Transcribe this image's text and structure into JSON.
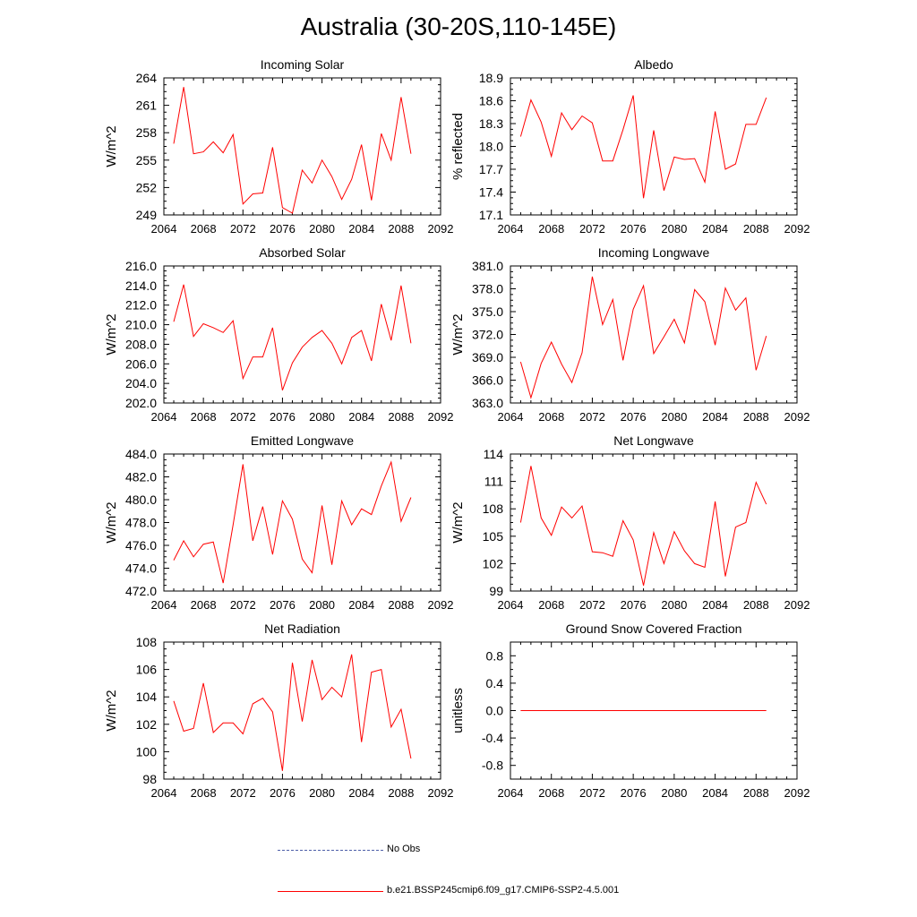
{
  "title": "Australia (30-20S,110-145E)",
  "colors": {
    "model_line": "#ff0000",
    "obs_line": "#4d5fa8",
    "axis": "#000000"
  },
  "legend": [
    {
      "label": "No Obs",
      "style": "dashed",
      "color": "#4d5fa8"
    },
    {
      "label": "b.e21.BSSP245cmip6.f09_g17.CMIP6-SSP2-4.5.001",
      "style": "solid",
      "color": "#ff0000"
    }
  ],
  "chart_data": [
    {
      "type": "line",
      "title": "Incoming Solar",
      "xlabel": "",
      "ylabel": "W/m^2",
      "xlim": [
        2064,
        2092
      ],
      "ylim": [
        249,
        264
      ],
      "xticks": [
        2064,
        2068,
        2072,
        2076,
        2080,
        2084,
        2088,
        2092
      ],
      "yticks": [
        249,
        252,
        255,
        258,
        261,
        264
      ],
      "ytick_labels": [
        "249",
        "252",
        "255",
        "258",
        "261",
        "264"
      ],
      "x": [
        2065,
        2066,
        2067,
        2068,
        2069,
        2070,
        2071,
        2072,
        2073,
        2074,
        2075,
        2076,
        2077,
        2078,
        2079,
        2080,
        2081,
        2082,
        2083,
        2084,
        2085,
        2086,
        2087,
        2088,
        2089
      ],
      "series": [
        {
          "values": [
            256.8,
            263.0,
            255.7,
            255.9,
            257.0,
            255.8,
            257.8,
            250.2,
            251.3,
            251.4,
            256.4,
            249.8,
            249.2,
            253.9,
            252.5,
            255.0,
            253.2,
            250.7,
            252.9,
            256.7,
            250.6,
            257.9,
            255.0,
            261.9,
            255.7
          ]
        }
      ]
    },
    {
      "type": "line",
      "title": "Albedo",
      "xlabel": "",
      "ylabel": "% reflected",
      "xlim": [
        2064,
        2092
      ],
      "ylim": [
        17.1,
        18.9
      ],
      "xticks": [
        2064,
        2068,
        2072,
        2076,
        2080,
        2084,
        2088,
        2092
      ],
      "yticks": [
        17.1,
        17.4,
        17.7,
        18.0,
        18.3,
        18.6,
        18.9
      ],
      "ytick_labels": [
        "17.1",
        "17.4",
        "17.7",
        "18.0",
        "18.3",
        "18.6",
        "18.9"
      ],
      "x": [
        2065,
        2066,
        2067,
        2068,
        2069,
        2070,
        2071,
        2072,
        2073,
        2074,
        2075,
        2076,
        2077,
        2078,
        2079,
        2080,
        2081,
        2082,
        2083,
        2084,
        2085,
        2086,
        2087,
        2088,
        2089
      ],
      "series": [
        {
          "values": [
            18.13,
            18.61,
            18.32,
            17.87,
            18.44,
            18.22,
            18.4,
            18.31,
            17.81,
            17.81,
            18.22,
            18.67,
            17.32,
            18.21,
            17.42,
            17.86,
            17.83,
            17.84,
            17.53,
            18.46,
            17.7,
            17.77,
            18.29,
            18.29,
            18.64
          ]
        }
      ]
    },
    {
      "type": "line",
      "title": "Absorbed Solar",
      "xlabel": "",
      "ylabel": "W/m^2",
      "xlim": [
        2064,
        2092
      ],
      "ylim": [
        202,
        216
      ],
      "xticks": [
        2064,
        2068,
        2072,
        2076,
        2080,
        2084,
        2088,
        2092
      ],
      "yticks": [
        202,
        204,
        206,
        208,
        210,
        212,
        214,
        216
      ],
      "ytick_labels": [
        "202.0",
        "204.0",
        "206.0",
        "208.0",
        "210.0",
        "212.0",
        "214.0",
        "216.0"
      ],
      "x": [
        2065,
        2066,
        2067,
        2068,
        2069,
        2070,
        2071,
        2072,
        2073,
        2074,
        2075,
        2076,
        2077,
        2078,
        2079,
        2080,
        2081,
        2082,
        2083,
        2084,
        2085,
        2086,
        2087,
        2088,
        2089
      ],
      "series": [
        {
          "values": [
            210.3,
            214.1,
            208.8,
            210.1,
            209.7,
            209.2,
            210.4,
            204.5,
            206.7,
            206.7,
            209.7,
            203.3,
            206.1,
            207.7,
            208.7,
            209.4,
            208.1,
            206.0,
            208.7,
            209.4,
            206.3,
            212.1,
            208.4,
            214.0,
            208.1
          ]
        }
      ]
    },
    {
      "type": "line",
      "title": "Incoming Longwave",
      "xlabel": "",
      "ylabel": "W/m^2",
      "xlim": [
        2064,
        2092
      ],
      "ylim": [
        363,
        381
      ],
      "xticks": [
        2064,
        2068,
        2072,
        2076,
        2080,
        2084,
        2088,
        2092
      ],
      "yticks": [
        363,
        366,
        369,
        372,
        375,
        378,
        381
      ],
      "ytick_labels": [
        "363.0",
        "366.0",
        "369.0",
        "372.0",
        "375.0",
        "378.0",
        "381.0"
      ],
      "x": [
        2065,
        2066,
        2067,
        2068,
        2069,
        2070,
        2071,
        2072,
        2073,
        2074,
        2075,
        2076,
        2077,
        2078,
        2079,
        2080,
        2081,
        2082,
        2083,
        2084,
        2085,
        2086,
        2087,
        2088,
        2089
      ],
      "series": [
        {
          "values": [
            368.4,
            363.7,
            368.2,
            371.0,
            368.1,
            365.7,
            369.6,
            379.6,
            373.3,
            376.6,
            368.6,
            375.3,
            378.4,
            369.5,
            371.7,
            374.0,
            370.9,
            377.9,
            376.3,
            370.6,
            378.1,
            375.2,
            376.8,
            367.3,
            371.8
          ]
        }
      ]
    },
    {
      "type": "line",
      "title": "Emitted Longwave",
      "xlabel": "",
      "ylabel": "W/m^2",
      "xlim": [
        2064,
        2092
      ],
      "ylim": [
        472,
        484
      ],
      "xticks": [
        2064,
        2068,
        2072,
        2076,
        2080,
        2084,
        2088,
        2092
      ],
      "yticks": [
        472,
        474,
        476,
        478,
        480,
        482,
        484
      ],
      "ytick_labels": [
        "472.0",
        "474.0",
        "476.0",
        "478.0",
        "480.0",
        "482.0",
        "484.0"
      ],
      "x": [
        2065,
        2066,
        2067,
        2068,
        2069,
        2070,
        2071,
        2072,
        2073,
        2074,
        2075,
        2076,
        2077,
        2078,
        2079,
        2080,
        2081,
        2082,
        2083,
        2084,
        2085,
        2086,
        2087,
        2088,
        2089
      ],
      "series": [
        {
          "values": [
            474.7,
            476.4,
            475.0,
            476.1,
            476.3,
            472.7,
            477.8,
            483.1,
            476.4,
            479.4,
            475.2,
            479.9,
            478.3,
            474.8,
            473.6,
            479.5,
            474.3,
            479.9,
            477.8,
            479.2,
            478.7,
            481.2,
            483.3,
            478.1,
            480.2
          ]
        }
      ]
    },
    {
      "type": "line",
      "title": "Net Longwave",
      "xlabel": "",
      "ylabel": "W/m^2",
      "xlim": [
        2064,
        2092
      ],
      "ylim": [
        99,
        114
      ],
      "xticks": [
        2064,
        2068,
        2072,
        2076,
        2080,
        2084,
        2088,
        2092
      ],
      "yticks": [
        99,
        102,
        105,
        108,
        111,
        114
      ],
      "ytick_labels": [
        "99",
        "102",
        "105",
        "108",
        "111",
        "114"
      ],
      "x": [
        2065,
        2066,
        2067,
        2068,
        2069,
        2070,
        2071,
        2072,
        2073,
        2074,
        2075,
        2076,
        2077,
        2078,
        2079,
        2080,
        2081,
        2082,
        2083,
        2084,
        2085,
        2086,
        2087,
        2088,
        2089
      ],
      "series": [
        {
          "values": [
            106.5,
            112.7,
            107.0,
            105.1,
            108.2,
            107.0,
            108.3,
            103.3,
            103.2,
            102.8,
            106.7,
            104.6,
            99.6,
            105.4,
            102.0,
            105.5,
            103.4,
            102.0,
            101.6,
            108.8,
            100.6,
            106.0,
            106.5,
            110.9,
            108.5
          ]
        }
      ]
    },
    {
      "type": "line",
      "title": "Net Radiation",
      "xlabel": "",
      "ylabel": "W/m^2",
      "xlim": [
        2064,
        2092
      ],
      "ylim": [
        98,
        108
      ],
      "xticks": [
        2064,
        2068,
        2072,
        2076,
        2080,
        2084,
        2088,
        2092
      ],
      "yticks": [
        98,
        100,
        102,
        104,
        106,
        108
      ],
      "ytick_labels": [
        "98",
        "100",
        "102",
        "104",
        "106",
        "108"
      ],
      "x": [
        2065,
        2066,
        2067,
        2068,
        2069,
        2070,
        2071,
        2072,
        2073,
        2074,
        2075,
        2076,
        2077,
        2078,
        2079,
        2080,
        2081,
        2082,
        2083,
        2084,
        2085,
        2086,
        2087,
        2088,
        2089
      ],
      "series": [
        {
          "values": [
            103.7,
            101.5,
            101.7,
            105.0,
            101.4,
            102.1,
            102.1,
            101.3,
            103.5,
            103.9,
            102.9,
            98.6,
            106.5,
            102.2,
            106.7,
            103.8,
            104.7,
            104.0,
            107.1,
            100.7,
            105.8,
            106.0,
            101.8,
            103.1,
            99.5
          ]
        }
      ]
    },
    {
      "type": "line",
      "title": "Ground Snow Covered Fraction",
      "xlabel": "",
      "ylabel": "unitless",
      "xlim": [
        2064,
        2092
      ],
      "ylim": [
        -1.0,
        1.0
      ],
      "xticks": [
        2064,
        2068,
        2072,
        2076,
        2080,
        2084,
        2088,
        2092
      ],
      "yticks": [
        -0.8,
        -0.4,
        0.0,
        0.4,
        0.8
      ],
      "ytick_labels": [
        "-0.8",
        "-0.4",
        "0.0",
        "0.4",
        "0.8"
      ],
      "x": [
        2065,
        2066,
        2067,
        2068,
        2069,
        2070,
        2071,
        2072,
        2073,
        2074,
        2075,
        2076,
        2077,
        2078,
        2079,
        2080,
        2081,
        2082,
        2083,
        2084,
        2085,
        2086,
        2087,
        2088,
        2089
      ],
      "series": [
        {
          "values": [
            0,
            0,
            0,
            0,
            0,
            0,
            0,
            0,
            0,
            0,
            0,
            0,
            0,
            0,
            0,
            0,
            0,
            0,
            0,
            0,
            0,
            0,
            0,
            0,
            0
          ]
        }
      ]
    }
  ]
}
